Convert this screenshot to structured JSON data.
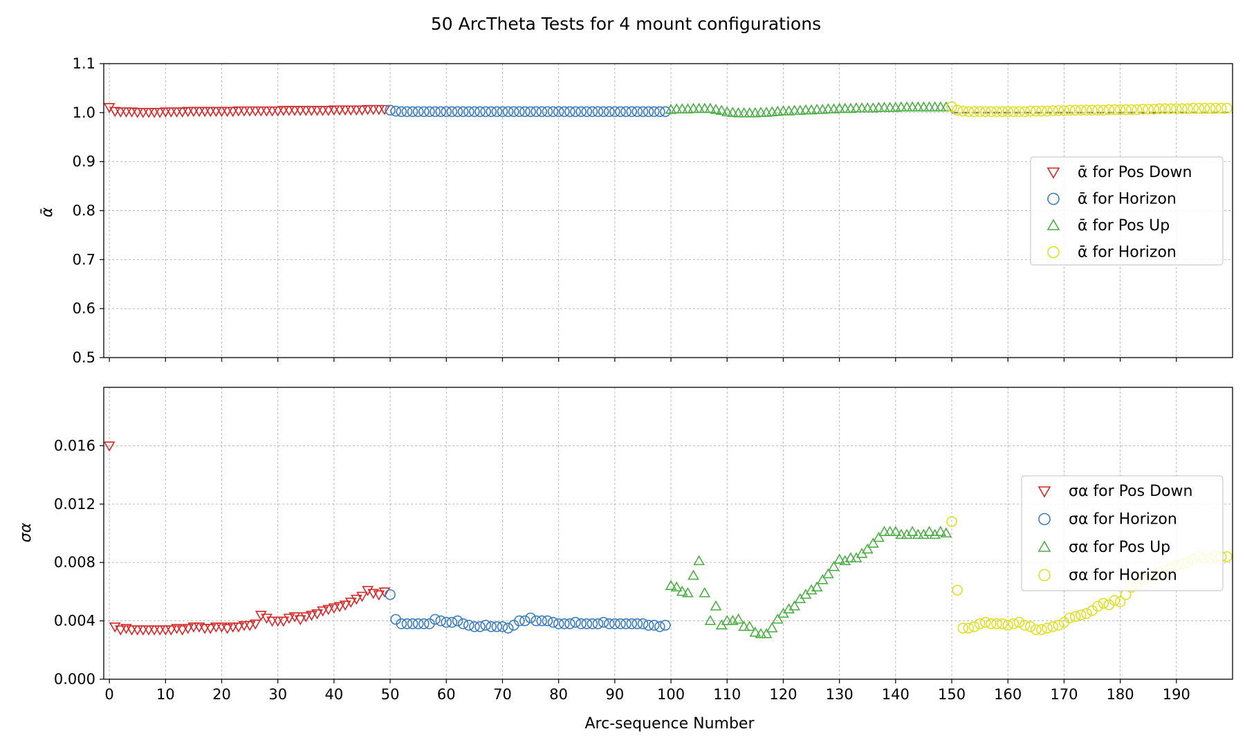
{
  "title": "50 ArcTheta Tests for 4 mount configurations",
  "colors": {
    "pos_down": "#d62728",
    "horizon_a": "#3a7dbf",
    "pos_up": "#4caf45",
    "horizon_b": "#e0e020",
    "reference_line": "#808080",
    "grid": "#b0b0b0"
  },
  "chart_data": [
    {
      "type": "scatter",
      "panel": "top",
      "ylabel": "ᾱ",
      "xlabel": "",
      "xlim": [
        -1,
        200
      ],
      "ylim": [
        0.5,
        1.1
      ],
      "yticks": [
        "0.5",
        "0.6",
        "0.7",
        "0.8",
        "0.9",
        "1.0",
        "1.1"
      ],
      "ytick_values": [
        0.5,
        0.6,
        0.7,
        0.8,
        0.9,
        1.0,
        1.1
      ],
      "grid": true,
      "reference_line": {
        "y": 1.0,
        "style": "dashed",
        "x_from": 150
      },
      "legend": {
        "placement": "right",
        "entries": [
          "ᾱ for Pos Down",
          "ᾱ for Horizon",
          "ᾱ for Pos Up",
          "ᾱ for Horizon"
        ]
      },
      "series": [
        {
          "name": "ᾱ for Pos Down",
          "marker": "triangle-down",
          "color_key": "pos_down",
          "x_start": 0,
          "y": [
            1.011,
            1.003,
            1.002,
            1.002,
            1.002,
            1.001,
            1.001,
            1.001,
            1.001,
            1.001,
            1.002,
            1.002,
            1.002,
            1.002,
            1.003,
            1.003,
            1.003,
            1.003,
            1.003,
            1.003,
            1.003,
            1.003,
            1.003,
            1.004,
            1.004,
            1.004,
            1.004,
            1.004,
            1.004,
            1.004,
            1.004,
            1.005,
            1.005,
            1.005,
            1.005,
            1.005,
            1.005,
            1.005,
            1.005,
            1.005,
            1.006,
            1.006,
            1.006,
            1.006,
            1.006,
            1.006,
            1.007,
            1.007,
            1.007,
            1.007
          ]
        },
        {
          "name": "ᾱ for Horizon",
          "marker": "circle",
          "color_key": "horizon_a",
          "x_start": 50,
          "y": [
            1.005,
            1.003,
            1.002,
            1.002,
            1.002,
            1.002,
            1.002,
            1.002,
            1.002,
            1.002,
            1.002,
            1.002,
            1.002,
            1.002,
            1.002,
            1.002,
            1.002,
            1.002,
            1.002,
            1.002,
            1.002,
            1.002,
            1.002,
            1.002,
            1.002,
            1.002,
            1.002,
            1.002,
            1.002,
            1.002,
            1.002,
            1.002,
            1.002,
            1.002,
            1.002,
            1.002,
            1.002,
            1.002,
            1.002,
            1.002,
            1.002,
            1.002,
            1.002,
            1.002,
            1.002,
            1.002,
            1.002,
            1.002,
            1.002,
            1.002
          ]
        },
        {
          "name": "ᾱ for Pos Up",
          "marker": "triangle-up",
          "color_key": "pos_up",
          "x_start": 100,
          "y": [
            1.006,
            1.007,
            1.007,
            1.007,
            1.008,
            1.008,
            1.008,
            1.008,
            1.006,
            1.004,
            1.001,
            1.0,
            0.999,
            0.999,
            0.999,
            0.999,
            1.0,
            1.0,
            1.001,
            1.002,
            1.003,
            1.003,
            1.004,
            1.004,
            1.005,
            1.005,
            1.006,
            1.006,
            1.007,
            1.007,
            1.008,
            1.008,
            1.008,
            1.009,
            1.009,
            1.009,
            1.009,
            1.01,
            1.01,
            1.01,
            1.01,
            1.011,
            1.011,
            1.011,
            1.011,
            1.011,
            1.011,
            1.011,
            1.011,
            1.011
          ]
        },
        {
          "name": "ᾱ for Horizon",
          "marker": "circle",
          "color_key": "horizon_b",
          "x_start": 150,
          "y": [
            1.012,
            1.005,
            1.003,
            1.002,
            1.002,
            1.002,
            1.002,
            1.002,
            1.002,
            1.002,
            1.002,
            1.002,
            1.002,
            1.002,
            1.003,
            1.003,
            1.003,
            1.003,
            1.004,
            1.004,
            1.004,
            1.005,
            1.005,
            1.005,
            1.005,
            1.005,
            1.005,
            1.005,
            1.006,
            1.006,
            1.006,
            1.006,
            1.006,
            1.006,
            1.007,
            1.007,
            1.007,
            1.008,
            1.008,
            1.008,
            1.008,
            1.008,
            1.008,
            1.009,
            1.009,
            1.009,
            1.009,
            1.009,
            1.009,
            1.009
          ]
        }
      ]
    },
    {
      "type": "scatter",
      "panel": "bottom",
      "ylabel": "σα",
      "xlabel": "Arc-sequence Number",
      "xlim": [
        -1,
        200
      ],
      "ylim": [
        0.0,
        0.02
      ],
      "xticks": [
        "0",
        "10",
        "20",
        "30",
        "40",
        "50",
        "60",
        "70",
        "80",
        "90",
        "100",
        "110",
        "120",
        "130",
        "140",
        "150",
        "160",
        "170",
        "180",
        "190"
      ],
      "xtick_values": [
        0,
        10,
        20,
        30,
        40,
        50,
        60,
        70,
        80,
        90,
        100,
        110,
        120,
        130,
        140,
        150,
        160,
        170,
        180,
        190
      ],
      "yticks": [
        "0.000",
        "0.004",
        "0.008",
        "0.012",
        "0.016"
      ],
      "ytick_values": [
        0.0,
        0.004,
        0.008,
        0.012,
        0.016
      ],
      "grid": true,
      "legend": {
        "placement": "right",
        "entries": [
          "σα for Pos Down",
          "σα for Horizon",
          "σα for Pos Up",
          "σα for Horizon"
        ]
      },
      "series": [
        {
          "name": "σα for Pos Down",
          "marker": "triangle-down",
          "color_key": "pos_down",
          "x_start": 0,
          "y": [
            0.016,
            0.0036,
            0.0034,
            0.0035,
            0.0034,
            0.0034,
            0.0034,
            0.0034,
            0.0034,
            0.0034,
            0.0034,
            0.0034,
            0.0035,
            0.0034,
            0.0035,
            0.0036,
            0.0036,
            0.0035,
            0.0035,
            0.0036,
            0.0036,
            0.0035,
            0.0036,
            0.0036,
            0.0037,
            0.0037,
            0.0038,
            0.0044,
            0.0042,
            0.004,
            0.004,
            0.004,
            0.0042,
            0.0043,
            0.0041,
            0.0043,
            0.0044,
            0.0045,
            0.0047,
            0.0048,
            0.0049,
            0.005,
            0.0051,
            0.0053,
            0.0055,
            0.0057,
            0.0061,
            0.0059,
            0.0058,
            0.006
          ]
        },
        {
          "name": "σα for Horizon",
          "marker": "circle",
          "color_key": "horizon_a",
          "x_start": 50,
          "y": [
            0.0058,
            0.0041,
            0.0038,
            0.0038,
            0.0038,
            0.0038,
            0.0038,
            0.0038,
            0.0041,
            0.004,
            0.0039,
            0.0039,
            0.004,
            0.0038,
            0.0037,
            0.0036,
            0.0036,
            0.0037,
            0.0036,
            0.0036,
            0.0036,
            0.0035,
            0.0037,
            0.004,
            0.004,
            0.0042,
            0.004,
            0.004,
            0.004,
            0.0039,
            0.0038,
            0.0038,
            0.0038,
            0.0039,
            0.0038,
            0.0038,
            0.0038,
            0.0038,
            0.0039,
            0.0038,
            0.0038,
            0.0038,
            0.0038,
            0.0038,
            0.0038,
            0.0038,
            0.0037,
            0.0037,
            0.0036,
            0.0037
          ]
        },
        {
          "name": "σα for Pos Up",
          "marker": "triangle-up",
          "color_key": "pos_up",
          "x_start": 100,
          "y": [
            0.0064,
            0.0063,
            0.006,
            0.0059,
            0.0071,
            0.0081,
            0.0059,
            0.004,
            0.005,
            0.0037,
            0.004,
            0.004,
            0.0041,
            0.0036,
            0.0036,
            0.0032,
            0.0031,
            0.0031,
            0.0035,
            0.0041,
            0.0045,
            0.0048,
            0.005,
            0.0055,
            0.0058,
            0.0061,
            0.0063,
            0.0068,
            0.0072,
            0.0077,
            0.0082,
            0.0081,
            0.0083,
            0.0083,
            0.0086,
            0.0089,
            0.0093,
            0.0097,
            0.0101,
            0.0101,
            0.0101,
            0.0099,
            0.0099,
            0.0101,
            0.0099,
            0.0099,
            0.0101,
            0.0099,
            0.0101,
            0.01
          ]
        },
        {
          "name": "σα for Horizon",
          "marker": "circle",
          "color_key": "horizon_b",
          "x_start": 150,
          "y": [
            0.0108,
            0.0061,
            0.0035,
            0.0035,
            0.0036,
            0.0038,
            0.0039,
            0.0038,
            0.0038,
            0.0038,
            0.0037,
            0.0038,
            0.0039,
            0.0037,
            0.0036,
            0.0034,
            0.0034,
            0.0035,
            0.0036,
            0.0037,
            0.0039,
            0.0042,
            0.0043,
            0.0044,
            0.0045,
            0.0047,
            0.005,
            0.0052,
            0.0051,
            0.0054,
            0.0053,
            0.0058,
            0.0063,
            0.0065,
            0.0068,
            0.0069,
            0.0071,
            0.0073,
            0.0075,
            0.0076,
            0.0078,
            0.0079,
            0.008,
            0.0082,
            0.0084,
            0.0083,
            0.0083,
            0.0084,
            0.0084,
            0.0084
          ]
        }
      ]
    }
  ]
}
